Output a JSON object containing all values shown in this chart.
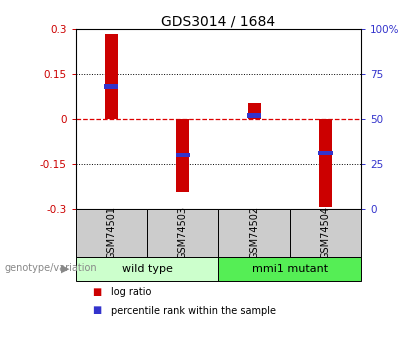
{
  "title": "GDS3014 / 1684",
  "samples": [
    "GSM74501",
    "GSM74503",
    "GSM74502",
    "GSM74504"
  ],
  "log_ratios": [
    0.285,
    -0.245,
    0.055,
    -0.295
  ],
  "percentile_ranks": [
    68,
    30,
    52,
    31
  ],
  "left_ylim": [
    -0.3,
    0.3
  ],
  "right_ylim": [
    0,
    100
  ],
  "left_yticks": [
    -0.3,
    -0.15,
    0,
    0.15,
    0.3
  ],
  "right_yticks": [
    0,
    25,
    50,
    75,
    100
  ],
  "left_yticklabels": [
    "-0.3",
    "-0.15",
    "0",
    "0.15",
    "0.3"
  ],
  "right_yticklabels": [
    "0",
    "25",
    "50",
    "75",
    "100%"
  ],
  "bar_color": "#cc0000",
  "percentile_color": "#3333cc",
  "groups": [
    {
      "label": "wild type",
      "samples": [
        0,
        1
      ],
      "color": "#ccffcc"
    },
    {
      "label": "mmi1 mutant",
      "samples": [
        2,
        3
      ],
      "color": "#55ee55"
    }
  ],
  "group_label_prefix": "genotype/variation",
  "legend_items": [
    {
      "color": "#cc0000",
      "label": "log ratio"
    },
    {
      "color": "#3333cc",
      "label": "percentile rank within the sample"
    }
  ],
  "title_fontsize": 10,
  "axis_label_color_left": "#cc0000",
  "axis_label_color_right": "#3333cc",
  "bar_width": 0.18,
  "hline0_color": "#dd0000",
  "hline_pm_color": "black",
  "sample_box_color": "#cccccc",
  "fig_width": 4.2,
  "fig_height": 3.45
}
